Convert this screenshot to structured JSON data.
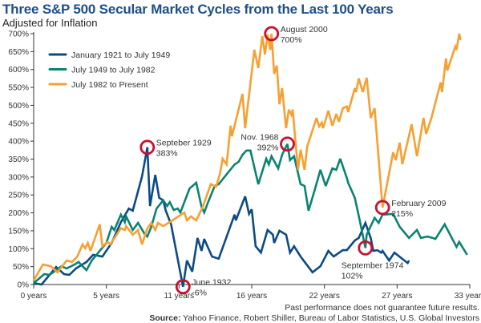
{
  "chart_data": {
    "type": "line",
    "title": "Three S&P 500 Secular Market Cycles from the Last 100 Years",
    "subtitle": "Adjusted for Inflation",
    "xlabel": "",
    "ylabel": "",
    "xlim": [
      0,
      33
    ],
    "ylim": [
      0,
      700
    ],
    "x_ticks": [
      0,
      5.5,
      11,
      16.5,
      22,
      27.5,
      33
    ],
    "x_tick_labels": [
      "0 years",
      "5 years",
      "11 years",
      "16 years",
      "22 years",
      "27 years",
      "33 years"
    ],
    "y_ticks": [
      0,
      50,
      100,
      150,
      200,
      250,
      300,
      350,
      400,
      450,
      500,
      550,
      600,
      650,
      700
    ],
    "y_tick_labels": [
      "0%",
      "50%",
      "100%",
      "150%",
      "200%",
      "250%",
      "300%",
      "350%",
      "400%",
      "450%",
      "500%",
      "550%",
      "600%",
      "650%",
      "700%"
    ],
    "grid": false,
    "legend_position": "top-left",
    "series": [
      {
        "name": "January 1921 to July 1949",
        "color": "#0d4a85",
        "points": [
          [
            0,
            4
          ],
          [
            0.6,
            0
          ],
          [
            1.7,
            49
          ],
          [
            2.3,
            29
          ],
          [
            2.7,
            27
          ],
          [
            3.2,
            45
          ],
          [
            4.0,
            63
          ],
          [
            4.5,
            83
          ],
          [
            5.2,
            78
          ],
          [
            5.9,
            116
          ],
          [
            6.6,
            174
          ],
          [
            7.2,
            212
          ],
          [
            7.5,
            206
          ],
          [
            8.2,
            302
          ],
          [
            8.6,
            383
          ],
          [
            8.8,
            219
          ],
          [
            9.2,
            306
          ],
          [
            9.5,
            242
          ],
          [
            9.8,
            235
          ],
          [
            10.0,
            206
          ],
          [
            10.4,
            168
          ],
          [
            11.3,
            -6
          ],
          [
            11.6,
            67
          ],
          [
            12.0,
            36
          ],
          [
            12.4,
            130
          ],
          [
            12.7,
            94
          ],
          [
            12.9,
            127
          ],
          [
            13.5,
            78
          ],
          [
            14.0,
            72
          ],
          [
            15.2,
            195
          ],
          [
            15.3,
            179
          ],
          [
            16.0,
            246
          ],
          [
            16.3,
            197
          ],
          [
            16.5,
            210
          ],
          [
            16.8,
            107
          ],
          [
            17.2,
            89
          ],
          [
            17.7,
            152
          ],
          [
            18.1,
            139
          ],
          [
            18.2,
            116
          ],
          [
            18.6,
            150
          ],
          [
            19.1,
            139
          ],
          [
            19.4,
            89
          ],
          [
            19.7,
            107
          ],
          [
            20.2,
            78
          ],
          [
            21.1,
            34
          ],
          [
            21.7,
            51
          ],
          [
            22.3,
            94
          ],
          [
            22.7,
            78
          ],
          [
            23.4,
            96
          ],
          [
            23.7,
            96
          ],
          [
            24.3,
            123
          ],
          [
            24.6,
            130
          ],
          [
            25.1,
            172
          ],
          [
            25.5,
            130
          ],
          [
            25.7,
            94
          ],
          [
            26.0,
            96
          ],
          [
            26.3,
            89
          ],
          [
            26.4,
            94
          ],
          [
            26.9,
            67
          ],
          [
            27.3,
            89
          ],
          [
            28.3,
            60
          ],
          [
            28.4,
            67
          ]
        ]
      },
      {
        "name": "July 1949 to July 1982",
        "color": "#0a8471",
        "points": [
          [
            0,
            4
          ],
          [
            0.8,
            29
          ],
          [
            1.2,
            27
          ],
          [
            1.7,
            40
          ],
          [
            2.1,
            51
          ],
          [
            2.5,
            45
          ],
          [
            3.1,
            56
          ],
          [
            3.4,
            63
          ],
          [
            3.7,
            51
          ],
          [
            4.0,
            40
          ],
          [
            4.4,
            67
          ],
          [
            5.0,
            94
          ],
          [
            5.5,
            116
          ],
          [
            5.9,
            161
          ],
          [
            6.1,
            152
          ],
          [
            6.6,
            195
          ],
          [
            6.9,
            174
          ],
          [
            7.0,
            190
          ],
          [
            7.5,
            152
          ],
          [
            7.9,
            172
          ],
          [
            8.4,
            141
          ],
          [
            8.6,
            134
          ],
          [
            8.9,
            161
          ],
          [
            9.3,
            212
          ],
          [
            9.8,
            235
          ],
          [
            10.1,
            219
          ],
          [
            10.3,
            230
          ],
          [
            10.6,
            208
          ],
          [
            10.9,
            212
          ],
          [
            11.1,
            201
          ],
          [
            11.8,
            268
          ],
          [
            12.3,
            284
          ],
          [
            12.7,
            217
          ],
          [
            12.9,
            201
          ],
          [
            13.2,
            230
          ],
          [
            13.7,
            275
          ],
          [
            14.0,
            280
          ],
          [
            15.2,
            335
          ],
          [
            15.5,
            342
          ],
          [
            15.8,
            362
          ],
          [
            16.1,
            374
          ],
          [
            16.4,
            374
          ],
          [
            17.0,
            280
          ],
          [
            17.6,
            351
          ],
          [
            17.8,
            335
          ],
          [
            18.0,
            358
          ],
          [
            18.5,
            324
          ],
          [
            18.8,
            362
          ],
          [
            19.2,
            392
          ],
          [
            19.4,
            347
          ],
          [
            19.7,
            358
          ],
          [
            20.2,
            280
          ],
          [
            20.5,
            275
          ],
          [
            20.8,
            206
          ],
          [
            21.3,
            268
          ],
          [
            21.7,
            320
          ],
          [
            22.1,
            275
          ],
          [
            22.6,
            324
          ],
          [
            22.9,
            320
          ],
          [
            23.2,
            351
          ],
          [
            23.7,
            297
          ],
          [
            23.8,
            284
          ],
          [
            24.3,
            242
          ],
          [
            24.7,
            174
          ],
          [
            25.1,
            102
          ],
          [
            25.2,
            139
          ],
          [
            25.8,
            186
          ],
          [
            26.1,
            172
          ],
          [
            26.4,
            195
          ],
          [
            27.2,
            197
          ],
          [
            27.7,
            161
          ],
          [
            28.4,
            130
          ],
          [
            29.0,
            152
          ],
          [
            29.3,
            130
          ],
          [
            29.8,
            134
          ],
          [
            30.2,
            130
          ],
          [
            30.4,
            127
          ],
          [
            31.1,
            168
          ],
          [
            32.0,
            105
          ],
          [
            32.2,
            119
          ],
          [
            32.8,
            83
          ]
        ]
      },
      {
        "name": "July 1982 to Present",
        "color": "#f7a032",
        "points": [
          [
            0,
            11
          ],
          [
            0.7,
            56
          ],
          [
            1.3,
            51
          ],
          [
            1.8,
            34
          ],
          [
            2.5,
            67
          ],
          [
            2.9,
            63
          ],
          [
            3.3,
            78
          ],
          [
            3.7,
            112
          ],
          [
            3.9,
            101
          ],
          [
            4.1,
            116
          ],
          [
            4.3,
            94
          ],
          [
            5.0,
            168
          ],
          [
            5.2,
            107
          ],
          [
            5.6,
            119
          ],
          [
            5.8,
            112
          ],
          [
            6.6,
            157
          ],
          [
            6.9,
            152
          ],
          [
            7.0,
            163
          ],
          [
            7.5,
            139
          ],
          [
            7.9,
            152
          ],
          [
            8.2,
            112
          ],
          [
            8.6,
            157
          ],
          [
            8.9,
            172
          ],
          [
            9.2,
            152
          ],
          [
            9.4,
            172
          ],
          [
            9.8,
            163
          ],
          [
            10.5,
            179
          ],
          [
            11.4,
            201
          ],
          [
            11.6,
            179
          ],
          [
            11.9,
            190
          ],
          [
            12.3,
            179
          ],
          [
            12.8,
            217
          ],
          [
            13.4,
            280
          ],
          [
            13.8,
            273
          ],
          [
            14.1,
            309
          ],
          [
            14.3,
            351
          ],
          [
            14.6,
            335
          ],
          [
            14.9,
            443
          ],
          [
            15.0,
            414
          ],
          [
            15.8,
            532
          ],
          [
            16.0,
            436
          ],
          [
            16.7,
            655
          ],
          [
            17.0,
            604
          ],
          [
            17.3,
            693
          ],
          [
            17.5,
            642
          ],
          [
            17.7,
            698
          ],
          [
            17.9,
            655
          ],
          [
            18.0,
            700
          ],
          [
            18.2,
            588
          ],
          [
            18.4,
            611
          ],
          [
            18.6,
            503
          ],
          [
            18.8,
            548
          ],
          [
            19.1,
            436
          ],
          [
            19.3,
            488
          ],
          [
            19.5,
            474
          ],
          [
            19.6,
            488
          ],
          [
            20.0,
            320
          ],
          [
            20.2,
            376
          ],
          [
            20.5,
            320
          ],
          [
            20.7,
            385
          ],
          [
            21.4,
            465
          ],
          [
            21.6,
            441
          ],
          [
            21.8,
            452
          ],
          [
            21.9,
            436
          ],
          [
            22.3,
            485
          ],
          [
            22.6,
            443
          ],
          [
            22.9,
            476
          ],
          [
            23.1,
            454
          ],
          [
            23.4,
            492
          ],
          [
            23.7,
            497
          ],
          [
            23.8,
            481
          ],
          [
            24.3,
            548
          ],
          [
            24.4,
            537
          ],
          [
            24.6,
            575
          ],
          [
            24.9,
            537
          ],
          [
            25.2,
            577
          ],
          [
            25.5,
            465
          ],
          [
            25.8,
            492
          ],
          [
            26.4,
            215
          ],
          [
            27.2,
            369
          ],
          [
            27.4,
            347
          ],
          [
            27.7,
            396
          ],
          [
            27.9,
            336
          ],
          [
            28.6,
            447
          ],
          [
            29.0,
            358
          ],
          [
            29.5,
            465
          ],
          [
            29.7,
            420
          ],
          [
            30.1,
            465
          ],
          [
            30.8,
            564
          ],
          [
            30.9,
            537
          ],
          [
            31.2,
            631
          ],
          [
            31.3,
            597
          ],
          [
            31.9,
            664
          ],
          [
            32.0,
            655
          ],
          [
            32.2,
            700
          ],
          [
            32.3,
            682
          ]
        ]
      }
    ],
    "annotations": [
      {
        "label": "Septeber 1929",
        "value_label": "383%",
        "x": 8.6,
        "y": 383,
        "side": "right"
      },
      {
        "label": "June 1932",
        "value_label": "-6%",
        "x": 11.3,
        "y": -6,
        "side": "right"
      },
      {
        "label": "Nov. 1968",
        "value_label": "392%",
        "x": 19.2,
        "y": 392,
        "side": "left"
      },
      {
        "label": "August 2000",
        "value_label": "700%",
        "x": 18.0,
        "y": 700,
        "side": "right"
      },
      {
        "label": "September 1974",
        "value_label": "102%",
        "x": 25.1,
        "y": 102,
        "side": "below"
      },
      {
        "label": "February 2009",
        "value_label": "215%",
        "x": 26.4,
        "y": 215,
        "side": "right"
      }
    ],
    "annotation_color": "#c8102e",
    "footnote": "Past performance does not guarantee future results.",
    "source_label": "Source:",
    "source_text": " Yahoo Finance, Robert Shiller, Bureau of Labor Statistics, U.S. Global Investors"
  }
}
